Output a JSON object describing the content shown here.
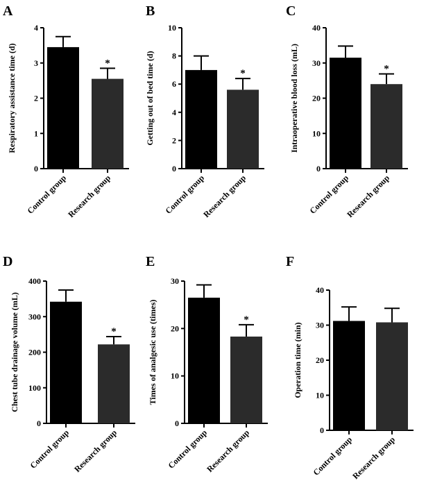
{
  "chart_data": [
    {
      "panel": "A",
      "type": "bar",
      "categories": [
        "Control group",
        "Research group"
      ],
      "values": [
        3.45,
        2.55
      ],
      "errors": [
        0.3,
        0.3
      ],
      "colors": [
        "#000000",
        "#2b2b2b"
      ],
      "significance": [
        "",
        "*"
      ],
      "ylabel": "Respiratory assistance time (d)",
      "ylim": [
        0,
        4
      ],
      "yticks": [
        0,
        1,
        2,
        3,
        4
      ]
    },
    {
      "panel": "B",
      "type": "bar",
      "categories": [
        "Control group",
        "Research group"
      ],
      "values": [
        7.0,
        5.6
      ],
      "errors": [
        1.0,
        0.8
      ],
      "colors": [
        "#000000",
        "#2b2b2b"
      ],
      "significance": [
        "",
        "*"
      ],
      "ylabel": "Getting out of bed time (d)",
      "ylim": [
        0,
        10
      ],
      "yticks": [
        0,
        2,
        4,
        6,
        8,
        10
      ]
    },
    {
      "panel": "C",
      "type": "bar",
      "categories": [
        "Control group",
        "Research group"
      ],
      "values": [
        31.5,
        24.0
      ],
      "errors": [
        3.3,
        2.9
      ],
      "colors": [
        "#000000",
        "#2b2b2b"
      ],
      "significance": [
        "",
        "*"
      ],
      "ylabel": "Intraoperative blood loss (mL)",
      "ylim": [
        0,
        40
      ],
      "yticks": [
        0,
        10,
        20,
        30,
        40
      ]
    },
    {
      "panel": "D",
      "type": "bar",
      "categories": [
        "Control group",
        "Research group"
      ],
      "values": [
        342,
        222
      ],
      "errors": [
        33,
        22
      ],
      "colors": [
        "#000000",
        "#2b2b2b"
      ],
      "significance": [
        "",
        "*"
      ],
      "ylabel": "Chest tube drainage volume (mL)",
      "ylim": [
        0,
        400
      ],
      "yticks": [
        0,
        100,
        200,
        300,
        400
      ]
    },
    {
      "panel": "E",
      "type": "bar",
      "categories": [
        "Control group",
        "Research group"
      ],
      "values": [
        26.5,
        18.3
      ],
      "errors": [
        2.7,
        2.5
      ],
      "colors": [
        "#000000",
        "#2b2b2b"
      ],
      "significance": [
        "",
        "*"
      ],
      "ylabel": "Times of analgesic use (times)",
      "ylim": [
        0,
        30
      ],
      "yticks": [
        0,
        10,
        20,
        30
      ]
    },
    {
      "panel": "F",
      "type": "bar",
      "categories": [
        "Control group",
        "Research group"
      ],
      "values": [
        31.2,
        30.8
      ],
      "errors": [
        4.0,
        4.0
      ],
      "colors": [
        "#000000",
        "#2b2b2b"
      ],
      "significance": [
        "",
        ""
      ],
      "ylabel": "Operation time (min)",
      "ylim": [
        0,
        40
      ],
      "yticks": [
        0,
        10,
        20,
        30,
        40
      ]
    }
  ]
}
